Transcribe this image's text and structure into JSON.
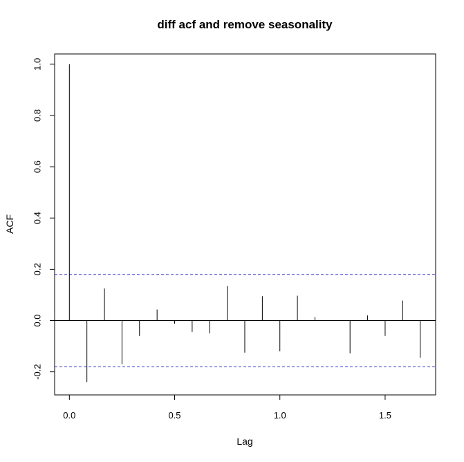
{
  "chart_data": {
    "type": "bar",
    "title": "diff acf and remove seasonality",
    "xlabel": "Lag",
    "ylabel": "ACF",
    "xlim": [
      -0.07,
      1.74
    ],
    "ylim": [
      -0.29,
      1.04
    ],
    "xticks": [
      "0.0",
      "0.5",
      "1.0",
      "1.5"
    ],
    "yticks": [
      "-0.2",
      "0.0",
      "0.2",
      "0.4",
      "0.6",
      "0.8",
      "1.0"
    ],
    "confidence_band": 0.18,
    "grid": false,
    "x": [
      0.0,
      0.0833,
      0.1667,
      0.25,
      0.3333,
      0.4167,
      0.5,
      0.5833,
      0.6667,
      0.75,
      0.8333,
      0.9167,
      1.0,
      1.0833,
      1.1667,
      1.25,
      1.3333,
      1.4167,
      1.5,
      1.5833,
      1.6667
    ],
    "values": [
      1.0,
      -0.24,
      0.125,
      -0.17,
      -0.06,
      0.043,
      -0.012,
      -0.044,
      -0.05,
      0.135,
      -0.125,
      0.095,
      -0.12,
      0.097,
      0.014,
      0.0,
      -0.128,
      0.02,
      -0.06,
      0.078,
      -0.145
    ],
    "colors": {
      "bars": "#000000",
      "band": "#3333cc",
      "axis": "#000000"
    }
  }
}
